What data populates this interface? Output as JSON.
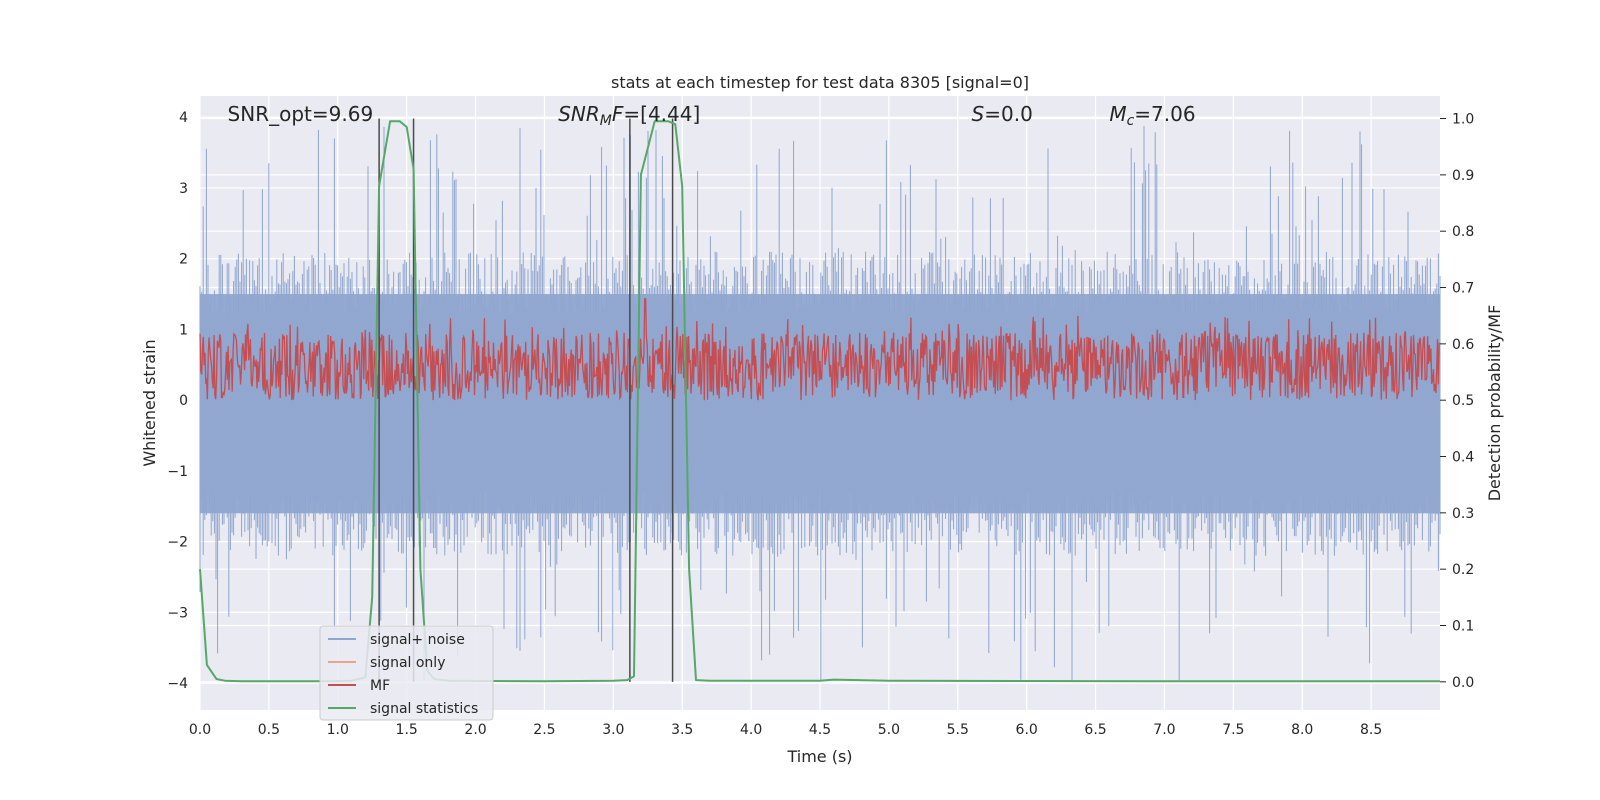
{
  "chart_data": {
    "type": "line",
    "title": "stats at each timestep for test data 8305 [signal=0]",
    "xlabel": "Time (s)",
    "ylabel": "Whitened strain",
    "y2label": "Detection probability/MF",
    "xlim": [
      0,
      9.0
    ],
    "ylim": [
      -4.38,
      4.3
    ],
    "y2lim": [
      -0.05,
      1.04
    ],
    "xticks": [
      0.0,
      0.5,
      1.0,
      1.5,
      2.0,
      2.5,
      3.0,
      3.5,
      4.0,
      4.5,
      5.0,
      5.5,
      6.0,
      6.5,
      7.0,
      7.5,
      8.0,
      8.5
    ],
    "xtick_labels": [
      "0.0",
      "0.5",
      "1.0",
      "1.5",
      "2.0",
      "2.5",
      "3.0",
      "3.5",
      "4.0",
      "4.5",
      "5.0",
      "5.5",
      "6.0",
      "6.5",
      "7.0",
      "7.5",
      "8.0",
      "8.5"
    ],
    "yticks": [
      -4,
      -3,
      -2,
      -1,
      0,
      1,
      2,
      3,
      4
    ],
    "ytick_labels": [
      "−4",
      "−3",
      "−2",
      "−1",
      "0",
      "1",
      "2",
      "3",
      "4"
    ],
    "y2ticks": [
      0.0,
      0.1,
      0.2,
      0.3,
      0.4,
      0.5,
      0.6,
      0.7,
      0.8,
      0.9,
      1.0
    ],
    "y2tick_labels": [
      "0.0",
      "0.1",
      "0.2",
      "0.3",
      "0.4",
      "0.5",
      "0.6",
      "0.7",
      "0.8",
      "0.9",
      "1.0"
    ],
    "grid": true,
    "legend_position": "lower-left",
    "annotations": [
      {
        "name": "snr-opt",
        "text": "SNR_opt=9.69",
        "x": 0.2,
        "y": 3.95
      },
      {
        "name": "snr-mf",
        "text": "SNR_MF=[4.44]",
        "html_parts": [
          "SNR",
          "M",
          "F=[4.44]"
        ],
        "x": 2.6,
        "y": 3.95
      },
      {
        "name": "s-value",
        "text": "S=0.0",
        "x": 5.6,
        "y": 3.95
      },
      {
        "name": "chirp-mass",
        "text": "Mc=7.06",
        "x": 6.6,
        "y": 3.95
      }
    ],
    "vlines": [
      1.3,
      1.55,
      3.12,
      3.43
    ],
    "vline_range_y2": [
      0.0,
      1.0
    ],
    "series": [
      {
        "name": "signal+ noise",
        "color": "#8fa6cf",
        "axis": "left",
        "kind": "noise",
        "envelope": {
          "typical_high": 1.5,
          "typical_low": -1.6,
          "peak_high": 3.9,
          "peak_low": -4.0
        }
      },
      {
        "name": "signal only",
        "color": "#e8a58a",
        "axis": "left",
        "values": []
      },
      {
        "name": "MF",
        "color": "#c44e52",
        "axis": "right",
        "kind": "noise-band",
        "band": {
          "low": 0.5,
          "high": 0.62,
          "peaks": [
            [
              3.23,
              0.68
            ],
            [
              1.3,
              0.57
            ]
          ]
        }
      },
      {
        "name": "signal statistics",
        "color": "#55a868",
        "axis": "right",
        "x": [
          0.0,
          0.05,
          0.12,
          0.18,
          0.3,
          0.6,
          0.9,
          1.1,
          1.2,
          1.25,
          1.3,
          1.38,
          1.45,
          1.5,
          1.55,
          1.6,
          1.65,
          1.7,
          1.8,
          2.5,
          3.0,
          3.1,
          3.15,
          3.2,
          3.3,
          3.4,
          3.45,
          3.5,
          3.55,
          3.6,
          3.7,
          4.0,
          4.5,
          4.6,
          5.0,
          7.0,
          9.0
        ],
        "y": [
          0.2,
          0.03,
          0.005,
          0.002,
          0.001,
          0.001,
          0.001,
          0.002,
          0.008,
          0.15,
          0.88,
          0.995,
          0.995,
          0.985,
          0.91,
          0.2,
          0.02,
          0.005,
          0.002,
          0.001,
          0.002,
          0.003,
          0.01,
          0.9,
          0.995,
          0.995,
          0.99,
          0.88,
          0.2,
          0.003,
          0.002,
          0.002,
          0.002,
          0.004,
          0.002,
          0.001,
          0.001
        ]
      }
    ]
  }
}
